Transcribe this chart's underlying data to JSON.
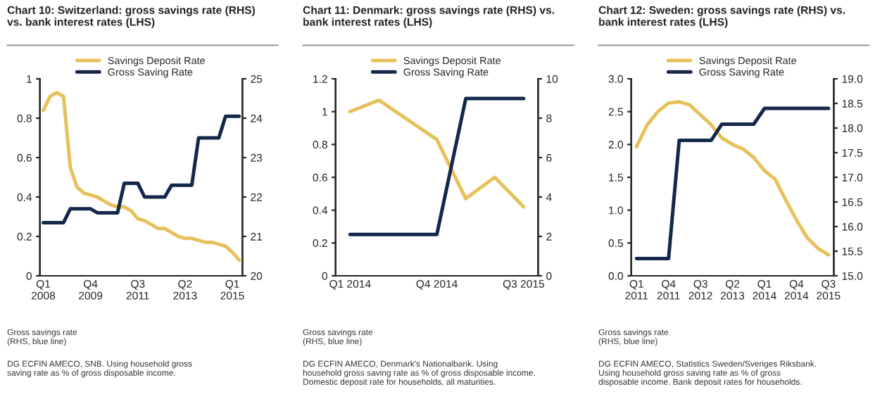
{
  "chart_data": [
    {
      "type": "line",
      "title": "Chart 10: Switzerland: gross savings rate (RHS)\nvs. bank interest rates (LHS)",
      "categories": [
        "Q1\n2008",
        null,
        null,
        null,
        null,
        null,
        null,
        "Q4\n2009",
        null,
        null,
        null,
        null,
        null,
        null,
        "Q3\n2011",
        null,
        null,
        null,
        null,
        null,
        null,
        "Q2\n2013",
        null,
        null,
        null,
        null,
        null,
        null,
        "Q1\n2015",
        null
      ],
      "series": [
        {
          "name": "Savings Deposit Rate",
          "color": "#e6c15c",
          "values": [
            0.84,
            0.91,
            0.93,
            0.91,
            0.55,
            0.45,
            0.42,
            0.41,
            0.4,
            0.38,
            0.36,
            0.35,
            0.35,
            0.33,
            0.29,
            0.28,
            0.26,
            0.24,
            0.24,
            0.22,
            0.2,
            0.19,
            0.19,
            0.18,
            0.17,
            0.17,
            0.16,
            0.15,
            0.12,
            0.08
          ]
        },
        {
          "name": "Gross Saving Rate",
          "color": "#14284b",
          "axis": "y2",
          "values": [
            21.35,
            21.35,
            21.35,
            21.35,
            21.7,
            21.7,
            21.7,
            21.7,
            21.6,
            21.6,
            21.6,
            21.6,
            22.35,
            22.35,
            22.35,
            22.0,
            22.0,
            22.0,
            22.0,
            22.3,
            22.3,
            22.3,
            22.3,
            23.5,
            23.5,
            23.5,
            23.5,
            24.05,
            24.05,
            24.05
          ]
        }
      ],
      "ylim": [
        0,
        1
      ],
      "yticks": [
        0,
        0.2,
        0.4,
        0.6,
        0.8,
        1
      ],
      "y2lim": [
        20,
        25
      ],
      "y2ticks": [
        20,
        21,
        22,
        23,
        24,
        25
      ],
      "legend": "top",
      "grid": false,
      "annotations": [
        "Gross savings rate\n(RHS, blue line)",
        "DG ECFIN AMECO, SNB. Using household gross\nsaving rate as % of gross disposable income."
      ]
    },
    {
      "type": "line",
      "title": "Chart 11: Denmark: gross savings rate (RHS) vs.\nbank interest rates (LHS)",
      "categories": [
        "Q1 2014",
        null,
        null,
        "Q4 2014",
        null,
        null,
        "Q3 2015"
      ],
      "series": [
        {
          "name": "Savings Deposit Rate",
          "color": "#e6c15c",
          "values": [
            1.0,
            1.07,
            0.95,
            0.83,
            0.47,
            0.6,
            0.42
          ]
        },
        {
          "name": "Gross Saving Rate",
          "color": "#14284b",
          "axis": "y2",
          "values": [
            2.1,
            2.1,
            2.1,
            2.1,
            9,
            9,
            9
          ]
        }
      ],
      "ylim": [
        0,
        1.2
      ],
      "yticks": [
        0,
        0.2,
        0.4,
        0.6,
        0.8,
        1,
        1.2
      ],
      "y2lim": [
        0,
        10
      ],
      "y2ticks": [
        0,
        2,
        4,
        6,
        8,
        10
      ],
      "legend": "top",
      "grid": false,
      "annotations": [
        "Gross savings rate\n(RHS, blue line)",
        "DG ECFIN AMECO, Denmark's Nationalbank. Using\nhousehold gross saving rate as % of gross disposable income.\nDomestic deposit rate for households, all maturities."
      ]
    },
    {
      "type": "line",
      "title": "Chart 12: Sweden: gross savings rate (RHS) vs.\nbank interest rates (LHS)",
      "categories": [
        "Q1\n2011",
        null,
        null,
        "Q4\n2011",
        null,
        null,
        "Q3\n2012",
        null,
        null,
        "Q2\n2013",
        null,
        null,
        "Q1\n2014",
        null,
        null,
        "Q4\n2014",
        null,
        null,
        "Q3\n2015"
      ],
      "series": [
        {
          "name": "Savings Deposit Rate",
          "color": "#e6c15c",
          "values": [
            1.97,
            2.3,
            2.5,
            2.63,
            2.65,
            2.6,
            2.45,
            2.3,
            2.1,
            2.0,
            1.93,
            1.8,
            1.6,
            1.47,
            1.15,
            0.85,
            0.58,
            0.42,
            0.32
          ]
        },
        {
          "name": "Gross Saving Rate",
          "color": "#14284b",
          "axis": "y2",
          "values": [
            15.35,
            15.35,
            15.35,
            15.35,
            17.75,
            17.75,
            17.75,
            17.75,
            18.08,
            18.08,
            18.08,
            18.08,
            18.4,
            18.4,
            18.4,
            18.4,
            18.4,
            18.4,
            18.4
          ]
        }
      ],
      "ylim": [
        0,
        3
      ],
      "yticks": [
        {
          "value": 0,
          "label": "0.0"
        },
        {
          "value": 0.5,
          "label": "0.5"
        },
        {
          "value": 1,
          "label": "1.0"
        },
        {
          "value": 1.5,
          "label": "1.5"
        },
        {
          "value": 2,
          "label": "2.0"
        },
        {
          "value": 2.5,
          "label": "2.5"
        },
        {
          "value": 3,
          "label": "3.0"
        }
      ],
      "y2lim": [
        15,
        19
      ],
      "y2ticks": [
        {
          "value": 15,
          "label": "15.0"
        },
        {
          "value": 15.5,
          "label": "15.5"
        },
        {
          "value": 16,
          "label": "16.0"
        },
        {
          "value": 16.5,
          "label": "16.5"
        },
        {
          "value": 17,
          "label": "17.0"
        },
        {
          "value": 17.5,
          "label": "17.5"
        },
        {
          "value": 18,
          "label": "18.0"
        },
        {
          "value": 18.5,
          "label": "18.5"
        },
        {
          "value": 19,
          "label": "19.0"
        }
      ],
      "legend": "top",
      "grid": false,
      "annotations": [
        "Gross savings rate\n(RHS, blue line)",
        "DG ECFIN AMECO, Statistics Sweden/Sveriges Riksbank.\nUsing household gross saving rate as % of gross\ndisposable income. Bank deposit rates for households."
      ]
    }
  ]
}
